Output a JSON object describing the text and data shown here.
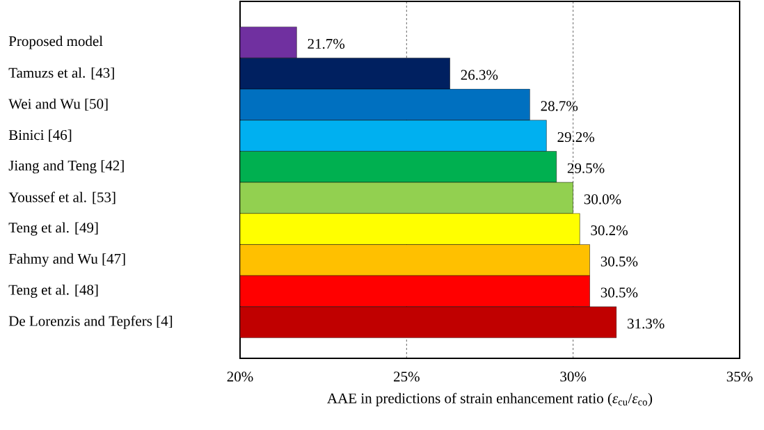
{
  "chart_data": {
    "type": "bar",
    "orientation": "horizontal",
    "categories": [
      "Proposed model",
      "Tamuzs et al. [43]",
      "Wei and Wu [50]",
      "Binici [46]",
      "Jiang and Teng [42]",
      "Youssef et al. [53]",
      "Teng et al. [49]",
      "Fahmy and Wu [47]",
      "Teng et al. [48]",
      "De Lorenzis and Tepfers [4]"
    ],
    "values": [
      21.7,
      26.3,
      28.7,
      29.2,
      29.5,
      30.0,
      30.2,
      30.5,
      30.5,
      31.3
    ],
    "value_labels": [
      "21.7%",
      "26.3%",
      "28.7%",
      "29.2%",
      "29.5%",
      "30.0%",
      "30.2%",
      "30.5%",
      "30.5%",
      "31.3%"
    ],
    "colors": [
      "#7030a0",
      "#002060",
      "#0070c0",
      "#00b0f0",
      "#00b050",
      "#92d050",
      "#ffff00",
      "#ffc000",
      "#ff0000",
      "#c00000"
    ],
    "xlim": [
      20,
      35
    ],
    "xticks": [
      {
        "value": 20,
        "label": "20%"
      },
      {
        "value": 25,
        "label": "25%"
      },
      {
        "value": 30,
        "label": "30%"
      },
      {
        "value": 35,
        "label": "35%"
      }
    ],
    "xlabel": "AAE in predictions of strain enhancement ratio (*ε*$_{cu}$/*ε*$_{co}$)",
    "grid": "x"
  }
}
